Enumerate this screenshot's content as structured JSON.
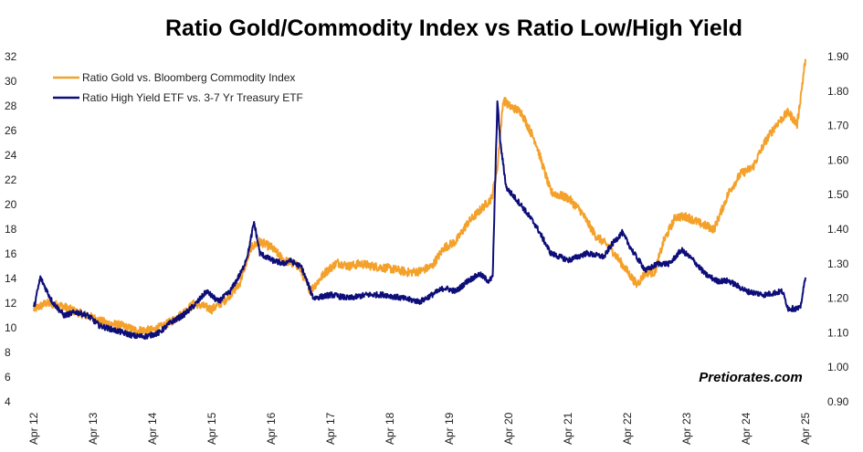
{
  "chart_data": {
    "type": "line",
    "title": "Ratio Gold/Commodity Index vs Ratio Low/High Yield",
    "x_ticks": [
      "Apr 12",
      "Apr 13",
      "Apr 14",
      "Apr 15",
      "Apr 16",
      "Apr 17",
      "Apr 18",
      "Apr 19",
      "Apr 20",
      "Apr 21",
      "Apr 22",
      "Apr 23",
      "Apr 24",
      "Apr 25"
    ],
    "left_axis": {
      "ylim": [
        4,
        32
      ],
      "ticks": [
        "4",
        "6",
        "8",
        "10",
        "12",
        "14",
        "16",
        "18",
        "20",
        "22",
        "24",
        "26",
        "28",
        "30",
        "32"
      ]
    },
    "right_axis": {
      "ylim": [
        0.9,
        1.9
      ],
      "ticks": [
        "0.90",
        "1.00",
        "1.10",
        "1.20",
        "1.30",
        "1.40",
        "1.50",
        "1.60",
        "1.70",
        "1.80",
        "1.90"
      ]
    },
    "grid": false,
    "legend_position": "top-left",
    "series": [
      {
        "name": "Ratio Gold vs. Bloomberg Commodity Index",
        "axis": "left",
        "color": "#F4A12B",
        "x": [
          2012.29,
          2012.5,
          2012.75,
          2013.0,
          2013.29,
          2013.5,
          2013.75,
          2014.0,
          2014.29,
          2014.5,
          2014.75,
          2015.0,
          2015.29,
          2015.5,
          2015.75,
          2015.95,
          2016.1,
          2016.3,
          2016.5,
          2016.75,
          2016.95,
          2017.2,
          2017.4,
          2017.6,
          2017.8,
          2018.0,
          2018.3,
          2018.6,
          2018.8,
          2019.0,
          2019.2,
          2019.4,
          2019.6,
          2019.8,
          2020.0,
          2020.1,
          2020.2,
          2020.3,
          2020.5,
          2020.75,
          2021.0,
          2021.3,
          2021.5,
          2021.75,
          2022.0,
          2022.15,
          2022.3,
          2022.45,
          2022.6,
          2022.75,
          2022.9,
          2023.1,
          2023.3,
          2023.5,
          2023.75,
          2024.0,
          2024.2,
          2024.4,
          2024.6,
          2024.8,
          2025.0,
          2025.15,
          2025.29
        ],
        "values": [
          11.5,
          12.0,
          11.8,
          11.3,
          10.8,
          10.4,
          10.2,
          9.8,
          9.8,
          10.2,
          11.0,
          12.0,
          11.5,
          12.2,
          13.5,
          16.5,
          17.0,
          16.5,
          15.5,
          15.0,
          13.0,
          14.5,
          15.3,
          15.0,
          15.2,
          15.0,
          14.8,
          14.5,
          14.6,
          15.0,
          16.5,
          17.0,
          18.5,
          19.5,
          20.5,
          23.0,
          28.5,
          28.0,
          27.5,
          25.0,
          21.0,
          20.5,
          19.5,
          17.5,
          16.5,
          15.5,
          14.5,
          13.5,
          14.5,
          14.5,
          17.0,
          19.0,
          19.0,
          18.5,
          18.0,
          21.0,
          22.5,
          23.0,
          25.0,
          26.5,
          27.5,
          26.5,
          31.8
        ]
      },
      {
        "name": "Ratio High Yield ETF vs. 3-7 Yr Treasury ETF",
        "axis": "right",
        "color": "#0E0E7A",
        "x": [
          2012.29,
          2012.4,
          2012.6,
          2012.8,
          2013.0,
          2013.2,
          2013.4,
          2013.6,
          2013.8,
          2014.0,
          2014.2,
          2014.4,
          2014.6,
          2014.8,
          2015.0,
          2015.2,
          2015.4,
          2015.6,
          2015.8,
          2015.9,
          2016.0,
          2016.1,
          2016.3,
          2016.5,
          2016.6,
          2016.8,
          2017.0,
          2017.3,
          2017.6,
          2017.9,
          2018.2,
          2018.5,
          2018.8,
          2019.0,
          2019.2,
          2019.4,
          2019.6,
          2019.8,
          2019.95,
          2020.02,
          2020.1,
          2020.15,
          2020.25,
          2020.5,
          2020.75,
          2021.0,
          2021.3,
          2021.6,
          2021.9,
          2022.0,
          2022.2,
          2022.4,
          2022.6,
          2022.8,
          2023.0,
          2023.2,
          2023.4,
          2023.6,
          2023.8,
          2024.0,
          2024.3,
          2024.6,
          2024.9,
          2025.0,
          2025.1,
          2025.2,
          2025.29
        ],
        "values": [
          1.17,
          1.26,
          1.19,
          1.15,
          1.16,
          1.15,
          1.12,
          1.11,
          1.1,
          1.09,
          1.09,
          1.1,
          1.13,
          1.15,
          1.18,
          1.22,
          1.19,
          1.22,
          1.28,
          1.33,
          1.42,
          1.33,
          1.31,
          1.3,
          1.31,
          1.29,
          1.2,
          1.21,
          1.2,
          1.21,
          1.21,
          1.2,
          1.19,
          1.21,
          1.23,
          1.22,
          1.25,
          1.27,
          1.25,
          1.26,
          1.77,
          1.65,
          1.52,
          1.47,
          1.41,
          1.33,
          1.31,
          1.33,
          1.32,
          1.35,
          1.39,
          1.33,
          1.28,
          1.3,
          1.3,
          1.34,
          1.31,
          1.27,
          1.25,
          1.25,
          1.22,
          1.21,
          1.22,
          1.17,
          1.17,
          1.17,
          1.26
        ]
      }
    ]
  },
  "watermark": "Pretiorates.com"
}
